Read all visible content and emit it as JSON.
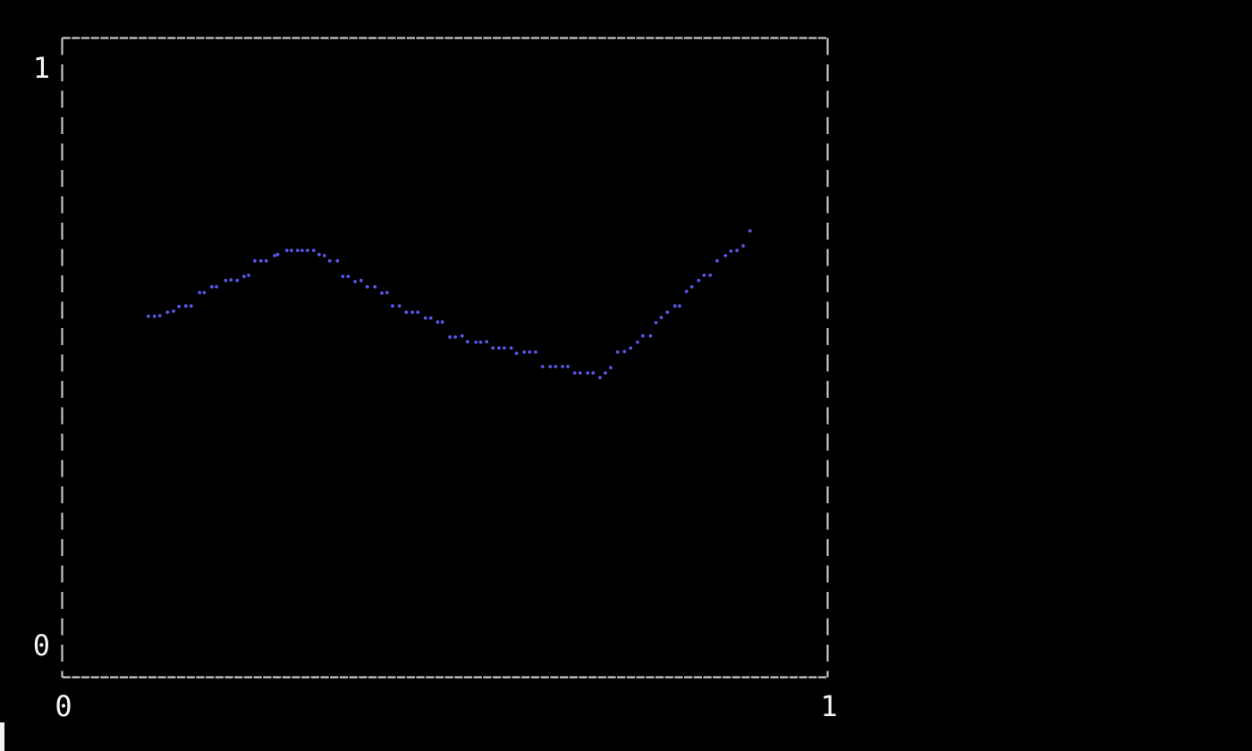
{
  "frame": {
    "background": "#000000",
    "border_color": "#c6c6c6",
    "tick_label_color": "#f5f5f5"
  },
  "cursor": {
    "color": "#f2f2f2"
  },
  "chart_data": {
    "type": "scatter",
    "title": "",
    "xlabel": "",
    "ylabel": "",
    "x_tick_labels": [
      "0",
      "1"
    ],
    "y_tick_labels": [
      "0",
      "1"
    ],
    "xlim": [
      0,
      1
    ],
    "ylim": [
      -0.05,
      1.05
    ],
    "grid": false,
    "legend": false,
    "marker": "dot",
    "marker_color": "#5757e8",
    "points": [
      [
        0.112,
        0.57
      ],
      [
        0.12,
        0.57
      ],
      [
        0.127,
        0.571
      ],
      [
        0.137,
        0.577
      ],
      [
        0.145,
        0.579
      ],
      [
        0.152,
        0.587
      ],
      [
        0.161,
        0.588
      ],
      [
        0.168,
        0.588
      ],
      [
        0.179,
        0.611
      ],
      [
        0.185,
        0.611
      ],
      [
        0.195,
        0.621
      ],
      [
        0.201,
        0.621
      ],
      [
        0.213,
        0.632
      ],
      [
        0.22,
        0.633
      ],
      [
        0.228,
        0.632
      ],
      [
        0.237,
        0.639
      ],
      [
        0.243,
        0.641
      ],
      [
        0.251,
        0.666
      ],
      [
        0.259,
        0.666
      ],
      [
        0.266,
        0.666
      ],
      [
        0.277,
        0.675
      ],
      [
        0.281,
        0.677
      ],
      [
        0.293,
        0.684
      ],
      [
        0.299,
        0.684
      ],
      [
        0.307,
        0.684
      ],
      [
        0.313,
        0.684
      ],
      [
        0.32,
        0.684
      ],
      [
        0.328,
        0.684
      ],
      [
        0.335,
        0.677
      ],
      [
        0.342,
        0.675
      ],
      [
        0.349,
        0.666
      ],
      [
        0.359,
        0.666
      ],
      [
        0.366,
        0.639
      ],
      [
        0.373,
        0.639
      ],
      [
        0.382,
        0.63
      ],
      [
        0.39,
        0.632
      ],
      [
        0.398,
        0.621
      ],
      [
        0.408,
        0.621
      ],
      [
        0.417,
        0.61
      ],
      [
        0.424,
        0.611
      ],
      [
        0.431,
        0.588
      ],
      [
        0.44,
        0.588
      ],
      [
        0.449,
        0.577
      ],
      [
        0.457,
        0.577
      ],
      [
        0.464,
        0.577
      ],
      [
        0.474,
        0.567
      ],
      [
        0.481,
        0.567
      ],
      [
        0.49,
        0.56
      ],
      [
        0.496,
        0.56
      ],
      [
        0.506,
        0.534
      ],
      [
        0.513,
        0.534
      ],
      [
        0.522,
        0.536
      ],
      [
        0.529,
        0.526
      ],
      [
        0.54,
        0.525
      ],
      [
        0.546,
        0.525
      ],
      [
        0.554,
        0.526
      ],
      [
        0.562,
        0.515
      ],
      [
        0.57,
        0.515
      ],
      [
        0.577,
        0.515
      ],
      [
        0.586,
        0.515
      ],
      [
        0.593,
        0.506
      ],
      [
        0.603,
        0.508
      ],
      [
        0.61,
        0.508
      ],
      [
        0.618,
        0.508
      ],
      [
        0.627,
        0.483
      ],
      [
        0.637,
        0.483
      ],
      [
        0.644,
        0.483
      ],
      [
        0.653,
        0.483
      ],
      [
        0.66,
        0.483
      ],
      [
        0.669,
        0.472
      ],
      [
        0.676,
        0.472
      ],
      [
        0.686,
        0.472
      ],
      [
        0.693,
        0.472
      ],
      [
        0.702,
        0.464
      ],
      [
        0.709,
        0.472
      ],
      [
        0.716,
        0.481
      ],
      [
        0.725,
        0.508
      ],
      [
        0.734,
        0.509
      ],
      [
        0.742,
        0.515
      ],
      [
        0.751,
        0.525
      ],
      [
        0.758,
        0.536
      ],
      [
        0.768,
        0.536
      ],
      [
        0.775,
        0.559
      ],
      [
        0.782,
        0.568
      ],
      [
        0.79,
        0.577
      ],
      [
        0.8,
        0.588
      ],
      [
        0.806,
        0.588
      ],
      [
        0.815,
        0.613
      ],
      [
        0.822,
        0.621
      ],
      [
        0.831,
        0.632
      ],
      [
        0.838,
        0.641
      ],
      [
        0.846,
        0.641
      ],
      [
        0.855,
        0.666
      ],
      [
        0.866,
        0.675
      ],
      [
        0.873,
        0.683
      ],
      [
        0.881,
        0.684
      ],
      [
        0.889,
        0.692
      ],
      [
        0.898,
        0.718
      ]
    ]
  }
}
